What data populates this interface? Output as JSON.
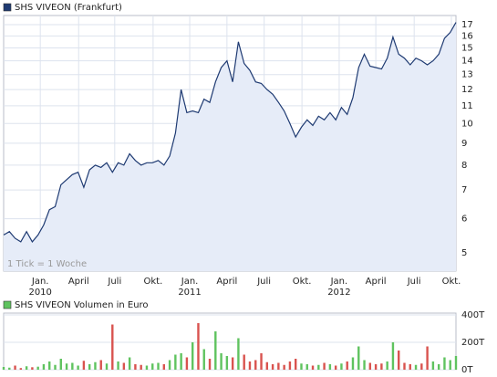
{
  "chart_data": [
    {
      "type": "line",
      "log_scale": true,
      "grid": true,
      "annotation": "1 Tick = 1 Woche",
      "area_color": "#e6ecf8",
      "series": [
        {
          "name": "SHS VIVEON (Frankfurt)",
          "color": "#1e3a72",
          "values": [
            5.5,
            5.6,
            5.4,
            5.3,
            5.6,
            5.3,
            5.5,
            5.8,
            6.3,
            6.4,
            7.2,
            7.4,
            7.6,
            7.7,
            7.1,
            7.8,
            8.0,
            7.9,
            8.1,
            7.7,
            8.1,
            8.0,
            8.5,
            8.2,
            8.0,
            8.1,
            8.1,
            8.2,
            8.0,
            8.4,
            9.5,
            12.0,
            10.6,
            10.7,
            10.6,
            11.4,
            11.2,
            12.5,
            13.5,
            14.0,
            12.5,
            15.5,
            13.8,
            13.3,
            12.5,
            12.4,
            12.0,
            11.7,
            11.2,
            10.7,
            10.0,
            9.3,
            9.8,
            10.2,
            9.9,
            10.4,
            10.2,
            10.6,
            10.2,
            10.9,
            10.5,
            11.5,
            13.5,
            14.5,
            13.6,
            13.5,
            13.4,
            14.2,
            15.9,
            14.5,
            14.2,
            13.7,
            14.2,
            14.0,
            13.7,
            14.0,
            14.5,
            15.8,
            16.3,
            17.2
          ]
        }
      ],
      "xlim": [
        0,
        79
      ],
      "xticks": [
        {
          "value": 6.4,
          "label": "Jan."
        },
        {
          "value": 13.1,
          "label": "April"
        },
        {
          "value": 19.4,
          "label": "Juli"
        },
        {
          "value": 26.1,
          "label": "Okt."
        },
        {
          "value": 32.5,
          "label": "Jan."
        },
        {
          "value": 39,
          "label": "April"
        },
        {
          "value": 45.5,
          "label": "Juli"
        },
        {
          "value": 52.1,
          "label": "Okt."
        },
        {
          "value": 58.6,
          "label": "Jan."
        },
        {
          "value": 65,
          "label": "April"
        },
        {
          "value": 71.7,
          "label": "Juli"
        },
        {
          "value": 78.2,
          "label": "Okt."
        }
      ],
      "year_ticks": [
        {
          "value": 6.4,
          "label": "2010"
        },
        {
          "value": 32.5,
          "label": "2011"
        },
        {
          "value": 58.6,
          "label": "2012"
        }
      ],
      "ylim": [
        4.53,
        17.85
      ],
      "yticks": [
        5,
        6,
        7,
        8,
        9,
        10,
        11,
        12,
        13,
        14,
        15,
        16,
        17
      ]
    },
    {
      "type": "bar",
      "grid": true,
      "up_color": "#5fc35f",
      "down_color": "#d9534f",
      "series": [
        {
          "name": "SHS VIVEON Volumen in Euro",
          "color": "#5fc35f",
          "values": [
            20000,
            15000,
            30000,
            12000,
            25000,
            18000,
            22000,
            40000,
            60000,
            35000,
            80000,
            45000,
            50000,
            30000,
            65000,
            40000,
            55000,
            70000,
            45000,
            330000,
            60000,
            50000,
            90000,
            40000,
            35000,
            30000,
            45000,
            50000,
            40000,
            70000,
            110000,
            120000,
            90000,
            200000,
            340000,
            150000,
            80000,
            280000,
            120000,
            100000,
            90000,
            230000,
            110000,
            60000,
            70000,
            120000,
            55000,
            40000,
            50000,
            35000,
            60000,
            80000,
            45000,
            40000,
            30000,
            35000,
            50000,
            40000,
            30000,
            45000,
            60000,
            90000,
            170000,
            70000,
            50000,
            40000,
            45000,
            60000,
            200000,
            140000,
            50000,
            40000,
            35000,
            45000,
            170000,
            60000,
            40000,
            90000,
            70000,
            100000
          ]
        }
      ],
      "xlim": [
        0,
        79
      ],
      "ylim": [
        0,
        400000
      ],
      "yticks": [
        {
          "value": 0,
          "label": "0T"
        },
        {
          "value": 200000,
          "label": "200T"
        },
        {
          "value": 400000,
          "label": "400T"
        }
      ]
    }
  ]
}
